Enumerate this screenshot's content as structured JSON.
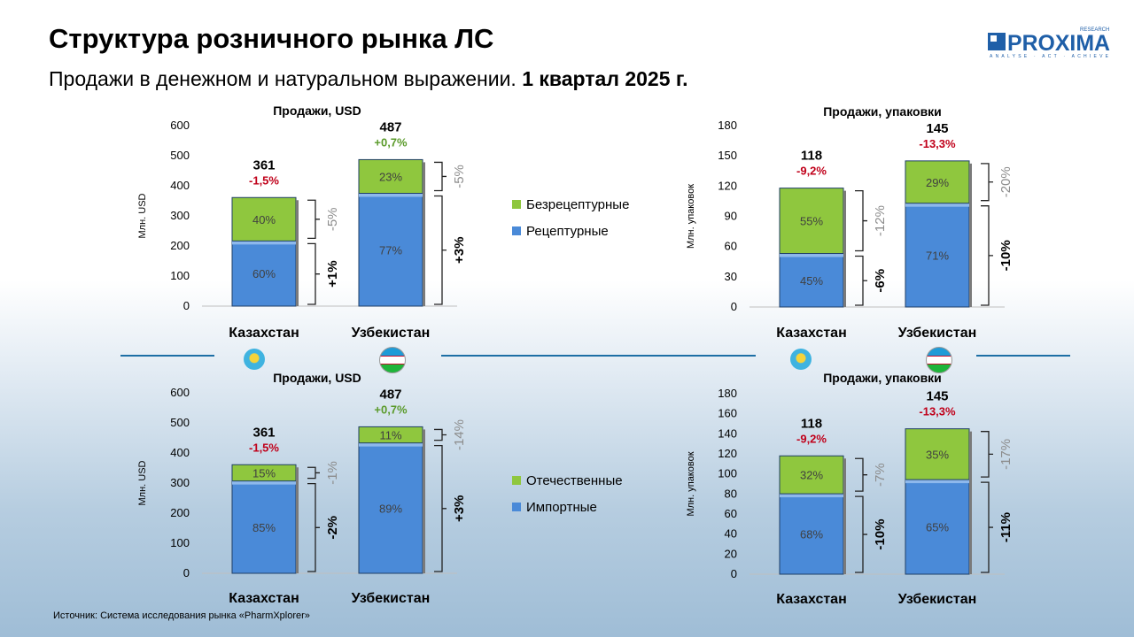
{
  "header": {
    "title": "Структура розничного рынка ЛС",
    "subtitle_normal": "Продажи в денежном и натуральном выражении.",
    "subtitle_bold": "1 квартал 2025 г."
  },
  "logo": {
    "brand": "PROXIMA",
    "research": "RESEARCH",
    "tagline": "ANALYSE · ACT · ACHIEVE"
  },
  "source": "Источник: Система исследования рынка «PharmXplorer»",
  "legends": {
    "top": [
      {
        "label": "Безрецептурные",
        "color": "#8fc73e"
      },
      {
        "label": "Рецептурные",
        "color": "#4a8ad8"
      }
    ],
    "bottom": [
      {
        "label": "Отечественные",
        "color": "#8fc73e"
      },
      {
        "label": "Импортные",
        "color": "#4a8ad8"
      }
    ]
  },
  "flags": [
    "kazakhstan-flag",
    "uzbekistan-flag",
    "kazakhstan-flag",
    "uzbekistan-flag"
  ],
  "colors": {
    "lower": "#4a8ad8",
    "upper": "#8fc73e",
    "pos_change": "#5a9a2a",
    "neg_change": "#c0001a",
    "gray_pct": "#8c8c8c"
  },
  "chart_data": [
    {
      "id": "top-left",
      "type": "bar",
      "stacked": true,
      "title": "Продажи, USD",
      "ylabel": "Млн. USD",
      "ylim": [
        0,
        600
      ],
      "yticks": [
        0,
        100,
        200,
        300,
        400,
        500,
        600
      ],
      "categories": [
        "Казахстан",
        "Узбекистан"
      ],
      "totals": [
        361,
        487
      ],
      "total_labels": [
        "361",
        "487"
      ],
      "total_changes": [
        "-1,5%",
        "+0,7%"
      ],
      "series": [
        {
          "name": "Рецептурные",
          "values": [
            216.6,
            375.0
          ],
          "labels": [
            "60%",
            "77%"
          ],
          "changes": [
            "+1%",
            "+3%"
          ]
        },
        {
          "name": "Безрецептурные",
          "values": [
            144.4,
            112.0
          ],
          "labels": [
            "40%",
            "23%"
          ],
          "changes": [
            "-5%",
            "-5%"
          ]
        }
      ]
    },
    {
      "id": "top-right",
      "type": "bar",
      "stacked": true,
      "title": "Продажи, упаковки",
      "ylabel": "Млн. упаковок",
      "ylim": [
        0,
        180
      ],
      "yticks": [
        0,
        30,
        60,
        90,
        120,
        150,
        180
      ],
      "categories": [
        "Казахстан",
        "Узбекистан"
      ],
      "totals": [
        118,
        145
      ],
      "total_labels": [
        "118",
        "145"
      ],
      "total_changes": [
        "-9,2%",
        "-13,3%"
      ],
      "series": [
        {
          "name": "Рецептурные",
          "values": [
            53.1,
            103.0
          ],
          "labels": [
            "45%",
            "71%"
          ],
          "changes": [
            "-6%",
            "-10%"
          ]
        },
        {
          "name": "Безрецептурные",
          "values": [
            64.9,
            42.0
          ],
          "labels": [
            "55%",
            "29%"
          ],
          "changes": [
            "-12%",
            "-20%"
          ]
        }
      ]
    },
    {
      "id": "bottom-left",
      "type": "bar",
      "stacked": true,
      "title": "Продажи, USD",
      "ylabel": "Млн. USD",
      "ylim": [
        0,
        600
      ],
      "yticks": [
        0,
        100,
        200,
        300,
        400,
        500,
        600
      ],
      "categories": [
        "Казахстан",
        "Узбекистан"
      ],
      "totals": [
        361,
        487
      ],
      "total_labels": [
        "361",
        "487"
      ],
      "total_changes": [
        "-1,5%",
        "+0,7%"
      ],
      "series": [
        {
          "name": "Импортные",
          "values": [
            306.9,
            433.4
          ],
          "labels": [
            "85%",
            "89%"
          ],
          "changes": [
            "-2%",
            "+3%"
          ]
        },
        {
          "name": "Отечественные",
          "values": [
            54.1,
            53.6
          ],
          "labels": [
            "15%",
            "11%"
          ],
          "changes": [
            "-1%",
            "-14%"
          ]
        }
      ]
    },
    {
      "id": "bottom-right",
      "type": "bar",
      "stacked": true,
      "title": "Продажи, упаковки",
      "ylabel": "Млн. упаковок",
      "ylim": [
        0,
        180
      ],
      "yticks": [
        0,
        20,
        40,
        60,
        80,
        100,
        120,
        140,
        160,
        180
      ],
      "categories": [
        "Казахстан",
        "Узбекистан"
      ],
      "totals": [
        118,
        145
      ],
      "total_labels": [
        "118",
        "145"
      ],
      "total_changes": [
        "-9,2%",
        "-13,3%"
      ],
      "series": [
        {
          "name": "Импортные",
          "values": [
            80.2,
            94.3
          ],
          "labels": [
            "68%",
            "65%"
          ],
          "changes": [
            "-10%",
            "-11%"
          ]
        },
        {
          "name": "Отечественные",
          "values": [
            37.8,
            50.7
          ],
          "labels": [
            "32%",
            "35%"
          ],
          "changes": [
            "-7%",
            "-17%"
          ]
        }
      ]
    }
  ]
}
